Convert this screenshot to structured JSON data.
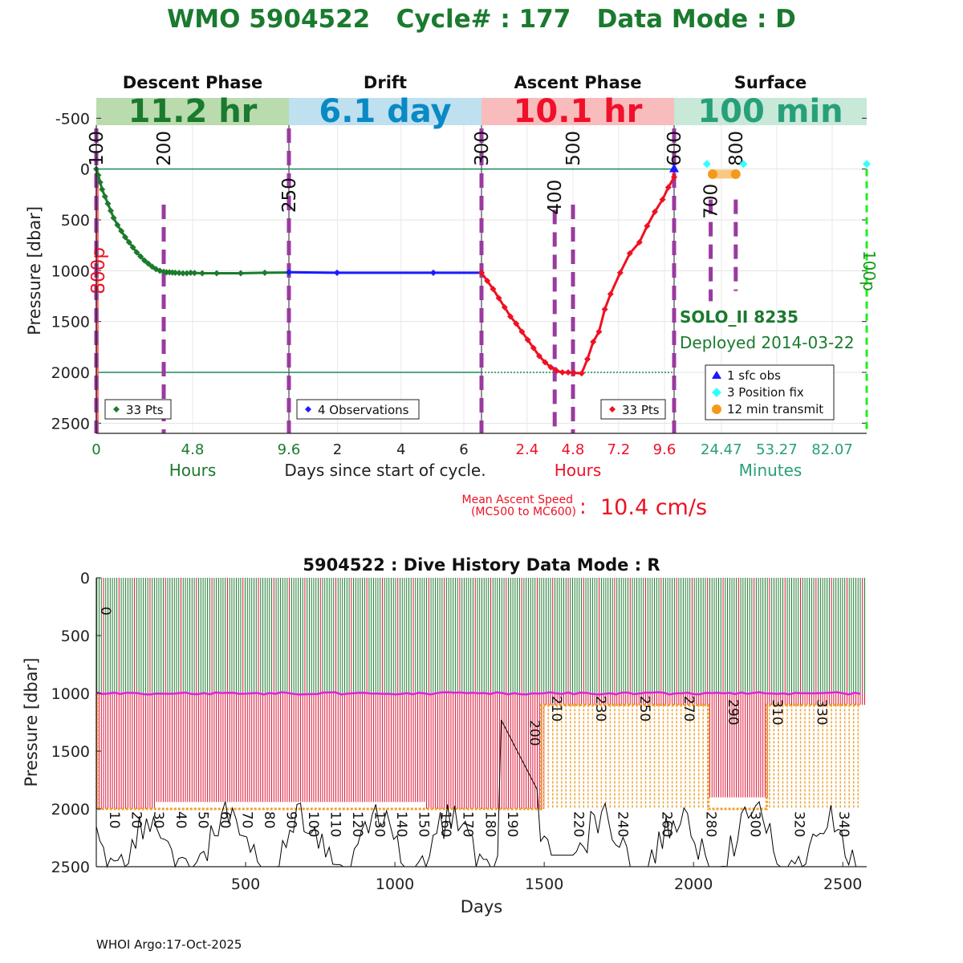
{
  "header": {
    "title": "WMO 5904522   Cycle# : 177   Data Mode : D",
    "title_color": "#1a7a2e"
  },
  "chart_data": [
    {
      "type": "line",
      "id": "cycle-profile",
      "ylabel": "Pressure [dbar]",
      "ylim": [
        2600,
        -700
      ],
      "yticks": [
        -500,
        0,
        500,
        1000,
        1500,
        2000,
        2500
      ],
      "center_xlabel": "Days since start of cycle.",
      "phases": [
        {
          "key": "descent",
          "name": "Descent Phase",
          "duration": "11.2 hr",
          "band_color": "#b9dbae",
          "text_color": "#1a7a2e",
          "xlabel": "Hours",
          "xlabel_color": "#1a7a2e",
          "xticks": [
            "0",
            "4.8",
            "9.6"
          ],
          "xtick_pos": [
            0,
            0.5,
            1.0
          ],
          "tick_color": "#1a7a2e"
        },
        {
          "key": "drift",
          "name": "Drift",
          "duration": "6.1 day",
          "band_color": "#bfe0ee",
          "text_color": "#0a8ac4",
          "xlabel": "",
          "xlabel_color": "#222",
          "xticks": [
            "2",
            "4",
            "6"
          ],
          "xtick_pos": [
            0.252,
            0.582,
            0.908
          ],
          "tick_color": "#222"
        },
        {
          "key": "ascent",
          "name": "Ascent Phase",
          "duration": "10.1 hr",
          "band_color": "#f8bcbc",
          "text_color": "#f0102a",
          "xlabel": "Hours",
          "xlabel_color": "#f0102a",
          "xticks": [
            "2.4",
            "4.8",
            "7.2",
            "9.6"
          ],
          "xtick_pos": [
            0.237,
            0.475,
            0.712,
            0.95
          ],
          "tick_color": "#f0102a"
        },
        {
          "key": "surface",
          "name": "Surface",
          "duration": "100 min",
          "band_color": "#c8e8d8",
          "text_color": "#27a07a",
          "xlabel": "Minutes",
          "xlabel_color": "#27a07a",
          "xticks": [
            "24.47",
            "53.27",
            "82.07"
          ],
          "xtick_pos": [
            0.245,
            0.533,
            0.821
          ],
          "tick_color": "#27a07a"
        }
      ],
      "series": [
        {
          "name": "descent",
          "color": "#1d7a2e",
          "points": [
            [
              0,
              0
            ],
            [
              0.02,
              60
            ],
            [
              0.04,
              130
            ],
            [
              0.06,
              200
            ],
            [
              0.09,
              270
            ],
            [
              0.12,
              340
            ],
            [
              0.15,
              410
            ],
            [
              0.18,
              480
            ],
            [
              0.22,
              550
            ],
            [
              0.26,
              610
            ],
            [
              0.3,
              670
            ],
            [
              0.34,
              720
            ],
            [
              0.38,
              770
            ],
            [
              0.42,
              820
            ],
            [
              0.46,
              860
            ],
            [
              0.5,
              900
            ],
            [
              0.54,
              930
            ],
            [
              0.58,
              960
            ],
            [
              0.62,
              985
            ],
            [
              0.66,
              1000
            ],
            [
              0.7,
              1010
            ],
            [
              0.73,
              1015
            ],
            [
              0.76,
              1015
            ],
            [
              0.79,
              1018
            ],
            [
              0.82,
              1020
            ],
            [
              0.86,
              1022
            ],
            [
              0.9,
              1025
            ],
            [
              0.94,
              1025
            ],
            [
              0.98,
              1020
            ],
            [
              1.02,
              1022
            ],
            [
              1.1,
              1025
            ],
            [
              1.25,
              1025
            ],
            [
              1.5,
              1025
            ],
            [
              1.75,
              1020
            ],
            [
              2.0,
              1018
            ]
          ]
        },
        {
          "name": "drift",
          "color": "#1a1aff",
          "points": [
            [
              0.0,
              1015
            ],
            [
              0.25,
              1020
            ],
            [
              0.75,
              1020
            ],
            [
              1.0,
              1020
            ]
          ]
        },
        {
          "name": "ascent",
          "color": "#ee1122",
          "points": [
            [
              0.0,
              1020
            ],
            [
              0.03,
              1100
            ],
            [
              0.06,
              1180
            ],
            [
              0.09,
              1270
            ],
            [
              0.12,
              1360
            ],
            [
              0.15,
              1450
            ],
            [
              0.18,
              1520
            ],
            [
              0.21,
              1600
            ],
            [
              0.24,
              1680
            ],
            [
              0.27,
              1760
            ],
            [
              0.3,
              1840
            ],
            [
              0.33,
              1900
            ],
            [
              0.36,
              1950
            ],
            [
              0.39,
              1985
            ],
            [
              0.42,
              2000
            ],
            [
              0.45,
              2000
            ],
            [
              0.48,
              2005
            ],
            [
              0.52,
              2010
            ],
            [
              0.55,
              1870
            ],
            [
              0.58,
              1700
            ],
            [
              0.61,
              1600
            ],
            [
              0.64,
              1380
            ],
            [
              0.67,
              1230
            ],
            [
              0.72,
              1020
            ],
            [
              0.77,
              830
            ],
            [
              0.82,
              720
            ],
            [
              0.86,
              560
            ],
            [
              0.9,
              420
            ],
            [
              0.94,
              300
            ],
            [
              0.97,
              180
            ],
            [
              1.0,
              80
            ],
            [
              1.0,
              0
            ]
          ]
        }
      ],
      "milestones": [
        {
          "label": "100",
          "phase": 0,
          "pos": 0.0,
          "dash_top": -400,
          "dash_bottom": 2600,
          "label_y": -30,
          "color": "#9a3aa0"
        },
        {
          "label": "200",
          "phase": 0,
          "pos": 0.35,
          "dash_top": 350,
          "dash_bottom": 2600,
          "label_y": -30,
          "color": "#9a3aa0"
        },
        {
          "label": "250",
          "phase": 1,
          "pos": 0.0,
          "dash_top": -400,
          "dash_bottom": 2600,
          "label_y": 430,
          "color": "#9a3aa0"
        },
        {
          "label": "300",
          "phase": 2,
          "pos": 0.0,
          "dash_top": -400,
          "dash_bottom": 2600,
          "label_y": -30,
          "color": "#9a3aa0"
        },
        {
          "label": "400",
          "phase": 2,
          "pos": 0.38,
          "dash_top": 400,
          "dash_bottom": 2600,
          "label_y": 450,
          "color": "#9a3aa0"
        },
        {
          "label": "500",
          "phase": 2,
          "pos": 0.475,
          "dash_top": 350,
          "dash_bottom": 2600,
          "label_y": -30,
          "color": "#9a3aa0"
        },
        {
          "label": "600",
          "phase": 3,
          "pos": 0.0,
          "dash_top": -400,
          "dash_bottom": 2600,
          "label_y": -30,
          "color": "#9a3aa0"
        },
        {
          "label": "700",
          "phase": 3,
          "pos": 0.19,
          "dash_top": 300,
          "dash_bottom": 1300,
          "label_y": 490,
          "color": "#9a3aa0"
        },
        {
          "label": "800",
          "phase": 3,
          "pos": 0.32,
          "dash_top": 300,
          "dash_bottom": 1200,
          "label_y": -30,
          "color": "#9a3aa0"
        }
      ],
      "side_labels": {
        "left": {
          "text": "800p",
          "color": "#ee1122"
        },
        "right": {
          "text": "100p",
          "color": "#1a9a1a"
        }
      },
      "float_info": {
        "model": "SOLO_II 8235",
        "deployed": "Deployed 2014-03-22",
        "color": "#1a7a2e"
      },
      "legends": [
        {
          "text": "33 Pts",
          "color": "#1d7a2e",
          "marker": "diamond"
        },
        {
          "text": "4 Observations",
          "color": "#1a1aff",
          "marker": "diamond"
        },
        {
          "text": "33 Pts",
          "color": "#ee1122",
          "marker": "diamond"
        }
      ],
      "surface_legend": [
        {
          "text": "1 sfc obs",
          "color": "#1a1aff",
          "marker": "triangle"
        },
        {
          "text": "3 Position fix",
          "color": "#33ffff",
          "marker": "diamond"
        },
        {
          "text": "12 min transmit",
          "color": "#f49a1a",
          "marker": "circle"
        }
      ],
      "reference_lines": [
        0,
        2000
      ],
      "ascent_speed": {
        "label_line1": "Mean Ascent Speed",
        "label_line2": "(MC500 to MC600)",
        "colon": ":",
        "value": "10.4 cm/s",
        "color": "#ee1122"
      }
    },
    {
      "type": "bar",
      "id": "dive-history",
      "title": "5904522 : Dive History      Data Mode : R",
      "xlabel": "Days",
      "ylabel": "Pressure [dbar]",
      "xlim": [
        0,
        2580
      ],
      "ylim": [
        2500,
        0
      ],
      "xticks": [
        500,
        1000,
        1500,
        2000,
        2500
      ],
      "yticks": [
        0,
        500,
        1000,
        1500,
        2000,
        2500
      ],
      "cycle_count": 348,
      "cycle_interval_days": 7.41,
      "cycle_labels": [
        {
          "c": 0,
          "d": 0
        },
        {
          "c": 10,
          "d": 30
        },
        {
          "c": 20,
          "d": 104
        },
        {
          "c": 30,
          "d": 178
        },
        {
          "c": 40,
          "d": 252
        },
        {
          "c": 50,
          "d": 326
        },
        {
          "c": 60,
          "d": 400
        },
        {
          "c": 70,
          "d": 474
        },
        {
          "c": 80,
          "d": 548
        },
        {
          "c": 90,
          "d": 622
        },
        {
          "c": 100,
          "d": 696
        },
        {
          "c": 110,
          "d": 770
        },
        {
          "c": 120,
          "d": 844
        },
        {
          "c": 130,
          "d": 918
        },
        {
          "c": 140,
          "d": 992
        },
        {
          "c": 150,
          "d": 1066
        },
        {
          "c": 160,
          "d": 1140
        },
        {
          "c": 170,
          "d": 1214
        },
        {
          "c": 180,
          "d": 1288
        },
        {
          "c": 190,
          "d": 1362
        },
        {
          "c": 200,
          "d": 1436
        },
        {
          "c": 210,
          "d": 1510
        },
        {
          "c": 220,
          "d": 1584
        },
        {
          "c": 230,
          "d": 1658
        },
        {
          "c": 240,
          "d": 1732
        },
        {
          "c": 250,
          "d": 1806
        },
        {
          "c": 260,
          "d": 1880
        },
        {
          "c": 270,
          "d": 1954
        },
        {
          "c": 280,
          "d": 2028
        },
        {
          "c": 290,
          "d": 2102
        },
        {
          "c": 300,
          "d": 2176
        },
        {
          "c": 310,
          "d": 2250
        },
        {
          "c": 320,
          "d": 2324
        },
        {
          "c": 330,
          "d": 2398
        },
        {
          "c": 340,
          "d": 2472
        }
      ],
      "colors": {
        "drift": "#1d7a2e",
        "profile": "#dd1133",
        "park_line": "#dd22dd",
        "transmit": "#f0a030",
        "bathy": "#000000"
      }
    }
  ],
  "footer": {
    "text": "WHOI Argo:17-Oct-2025"
  }
}
